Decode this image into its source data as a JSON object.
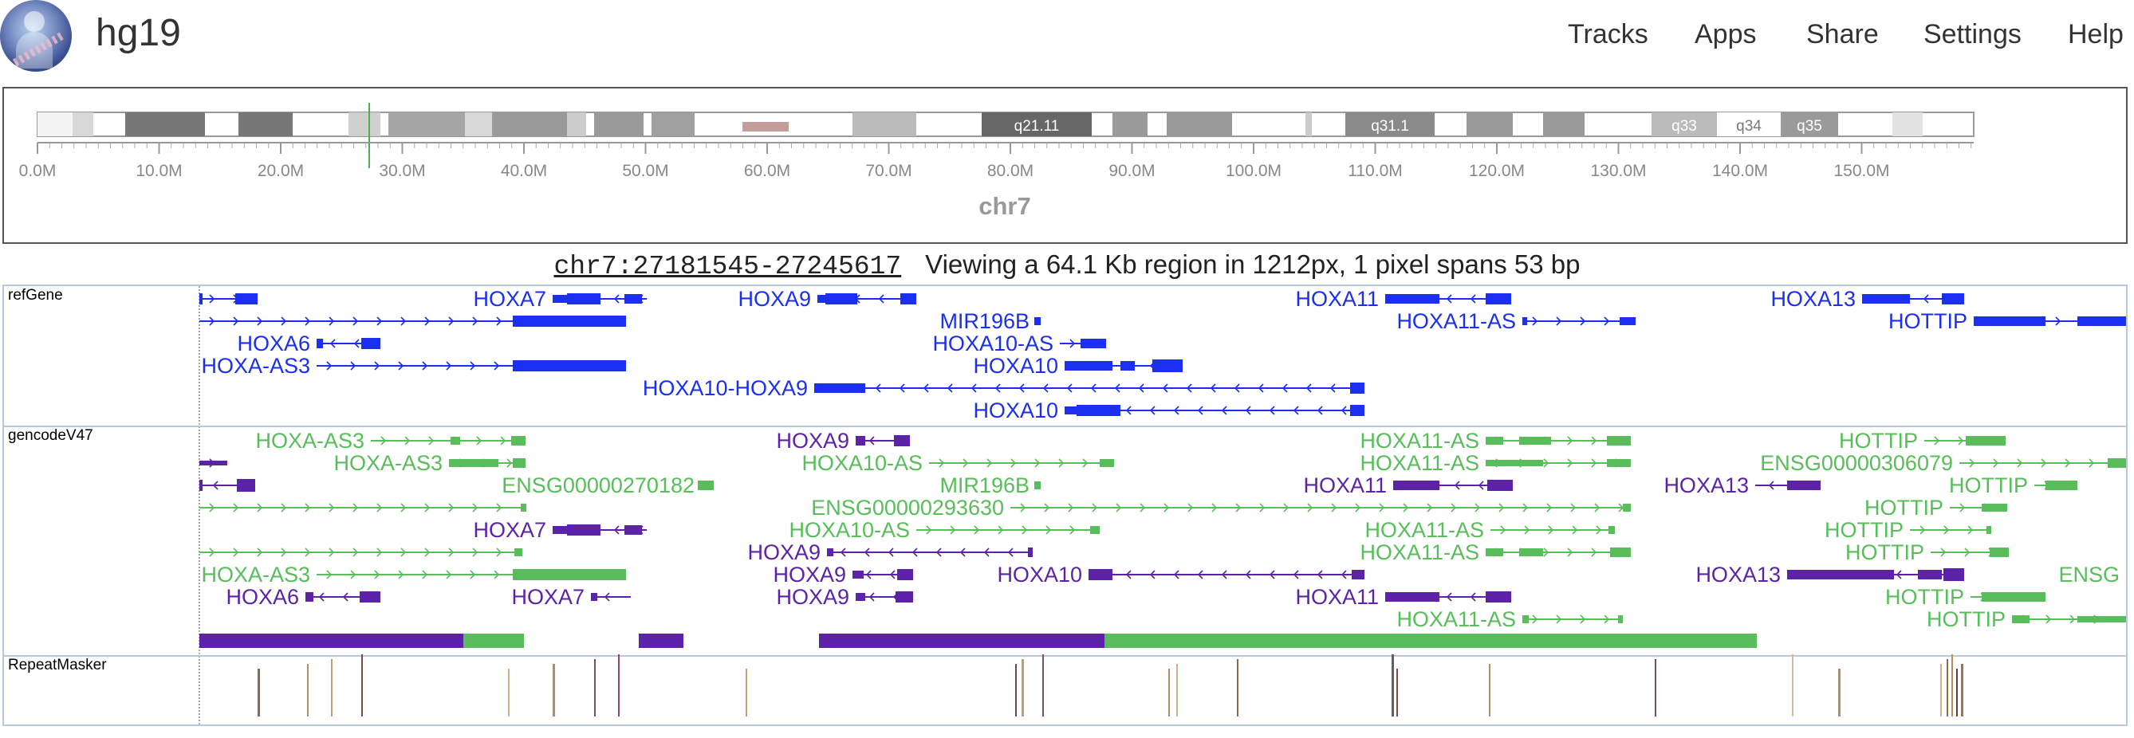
{
  "header": {
    "db": "hg19",
    "menu": [
      "Tracks",
      "Apps",
      "Share",
      "Settings",
      "Help"
    ]
  },
  "ideogram": {
    "chrom": "chr7",
    "tick_labels": [
      "0.0M",
      "10.0M",
      "20.0M",
      "30.0M",
      "40.0M",
      "50.0M",
      "60.0M",
      "70.0M",
      "80.0M",
      "90.0M",
      "100.0M",
      "110.0M",
      "120.0M",
      "130.0M",
      "140.0M",
      "150.0M"
    ],
    "band_labels": [
      "q21.11",
      "q31.1",
      "q33",
      "q34",
      "q35"
    ]
  },
  "position": {
    "coord": "chr7:27181545-27245617",
    "info": "Viewing a 64.1 Kb region in 1212px, 1 pixel spans 53 bp"
  },
  "tracks": {
    "refgene_label": "refGene",
    "gencode_label": "gencodeV47",
    "repeat_label": "RepeatMasker"
  },
  "refgene_genes": [
    "HOXA7",
    "HOXA9",
    "HOXA11",
    "HOXA13",
    "MIR196B",
    "HOXA11-AS",
    "HOTTIP",
    "HOXA6",
    "HOXA10-AS",
    "HOXA-AS3",
    "HOXA10",
    "HOXA10-HOXA9",
    "HOXA10"
  ],
  "gencode_genes": [
    "HOXA-AS3",
    "HOXA9",
    "HOXA11-AS",
    "HOTTIP",
    "HOXA-AS3",
    "HOXA10-AS",
    "HOXA11-AS",
    "ENSG00000306079",
    "ENSG00000270182",
    "MIR196B",
    "HOXA11",
    "HOXA13",
    "HOTTIP",
    "ENSG00000293630",
    "HOTTIP",
    "HOXA7",
    "HOXA10-AS",
    "HOXA11-AS",
    "HOTTIP",
    "HOXA9",
    "HOXA11-AS",
    "HOTTIP",
    "HOXA-AS3",
    "HOXA9",
    "HOXA10",
    "HOXA13",
    "ENSG",
    "HOXA6",
    "HOXA7",
    "HOXA9",
    "HOXA11",
    "HOTTIP",
    "HOXA11-AS",
    "HOTTIP"
  ],
  "colors": {
    "refgene": "#1b2ff0",
    "gencode_green": "#58bd5a",
    "gencode_purple": "#5c22a8"
  }
}
